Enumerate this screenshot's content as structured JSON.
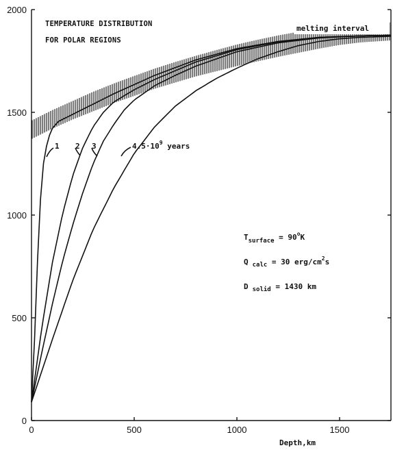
{
  "chart_data": {
    "type": "line",
    "title_lines": [
      "TEMPERATURE DISTRIBUTION",
      "FOR POLAR REGIONS"
    ],
    "xlabel": "Depth,km",
    "ylabel": "",
    "xlim": [
      0,
      1750
    ],
    "ylim": [
      0,
      2000
    ],
    "x_ticks": [
      0,
      500,
      1000,
      1500
    ],
    "y_ticks": [
      0,
      500,
      1000,
      1500,
      2000
    ],
    "grid": false,
    "series": [
      {
        "name": "1",
        "x": [
          0,
          15,
          30,
          45,
          60,
          80,
          100,
          130,
          160,
          200,
          300,
          400,
          600,
          800,
          1000,
          1200,
          1400,
          1600,
          1750
        ],
        "y": [
          90,
          400,
          800,
          1100,
          1270,
          1370,
          1420,
          1455,
          1470,
          1490,
          1540,
          1590,
          1680,
          1755,
          1810,
          1845,
          1865,
          1872,
          1875
        ]
      },
      {
        "name": "2",
        "x": [
          0,
          50,
          100,
          150,
          200,
          250,
          300,
          350,
          400,
          500,
          600,
          800,
          1000,
          1200,
          1400,
          1600,
          1750
        ],
        "y": [
          90,
          450,
          760,
          1000,
          1190,
          1330,
          1430,
          1500,
          1550,
          1610,
          1660,
          1745,
          1805,
          1843,
          1865,
          1872,
          1875
        ]
      },
      {
        "name": "3",
        "x": [
          0,
          50,
          100,
          150,
          200,
          250,
          300,
          350,
          400,
          450,
          500,
          600,
          700,
          800,
          1000,
          1200,
          1400,
          1600,
          1750
        ],
        "y": [
          90,
          330,
          560,
          770,
          950,
          1110,
          1250,
          1360,
          1440,
          1510,
          1560,
          1630,
          1680,
          1725,
          1795,
          1838,
          1862,
          1872,
          1875
        ]
      },
      {
        "name": "4.5·10⁹ years",
        "x": [
          0,
          100,
          200,
          300,
          400,
          500,
          600,
          700,
          800,
          900,
          1000,
          1100,
          1200,
          1300,
          1400,
          1500,
          1600,
          1750
        ],
        "y": [
          90,
          390,
          680,
          930,
          1130,
          1300,
          1430,
          1530,
          1605,
          1665,
          1715,
          1760,
          1795,
          1825,
          1845,
          1858,
          1865,
          1870
        ]
      }
    ],
    "melting_interval": {
      "label": "melting interval",
      "x": [
        0,
        100,
        200,
        300,
        400,
        500,
        600,
        700,
        800,
        900,
        1000,
        1100,
        1200,
        1300,
        1400,
        1500,
        1600,
        1750
      ],
      "lower": [
        1370,
        1420,
        1465,
        1505,
        1545,
        1580,
        1615,
        1645,
        1675,
        1700,
        1725,
        1748,
        1770,
        1790,
        1810,
        1828,
        1840,
        1850
      ],
      "upper": [
        1460,
        1510,
        1555,
        1600,
        1640,
        1677,
        1713,
        1745,
        1775,
        1803,
        1830,
        1853,
        1874,
        1892,
        1908,
        1920,
        1930,
        1938
      ]
    },
    "curve_labels": [
      {
        "text": "1",
        "series": 0
      },
      {
        "text": "2",
        "series": 1
      },
      {
        "text": "3",
        "series": 2
      }
    ],
    "age_label": {
      "prefix": "4.5·10",
      "exp": "9",
      "suffix": " years"
    },
    "params": [
      {
        "base": "T",
        "sub": "surface",
        "value": " = 90",
        "sup": "o",
        "tail": "K"
      },
      {
        "base": "Q",
        "sub": "calc",
        "value": " = 30 erg/cm",
        "sup": "2",
        "tail": "s"
      },
      {
        "base": "D",
        "sub": "solid",
        "value": " = 1430 km",
        "sup": "",
        "tail": ""
      }
    ]
  }
}
